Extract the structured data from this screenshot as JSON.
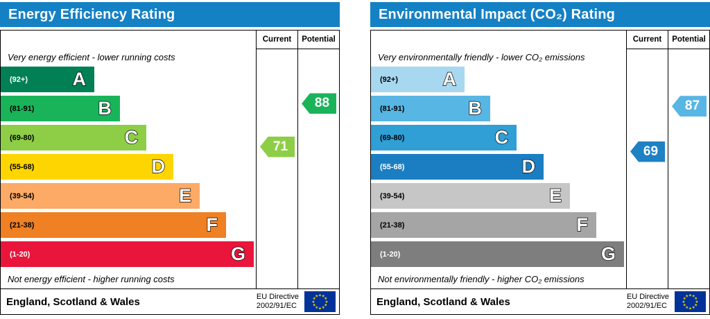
{
  "colors": {
    "header_bg": "#1581c5",
    "header_text": "#ffffff",
    "eu_flag_bg": "#003399",
    "eu_star": "#ffcc00"
  },
  "chart_data": [
    {
      "type": "bar",
      "title": "Energy Efficiency Rating",
      "columns": {
        "current": "Current",
        "potential": "Potential"
      },
      "top_note": "Very energy efficient - lower running costs",
      "bottom_note": "Not energy efficient - higher running costs",
      "categories": [
        "A",
        "B",
        "C",
        "D",
        "E",
        "F",
        "G"
      ],
      "bands": [
        {
          "letter": "A",
          "range_label": "(92+)",
          "min": 92,
          "max": 100,
          "color": "#008054",
          "label_color": "#ffffff",
          "width_pct": 36.7
        },
        {
          "letter": "B",
          "range_label": "(81-91)",
          "min": 81,
          "max": 91,
          "color": "#19b459",
          "label_color": "#000000",
          "width_pct": 46.7
        },
        {
          "letter": "C",
          "range_label": "(69-80)",
          "min": 69,
          "max": 80,
          "color": "#8dce46",
          "label_color": "#000000",
          "width_pct": 57.1
        },
        {
          "letter": "D",
          "range_label": "(55-68)",
          "min": 55,
          "max": 68,
          "color": "#ffd500",
          "label_color": "#000000",
          "width_pct": 67.7
        },
        {
          "letter": "E",
          "range_label": "(39-54)",
          "min": 39,
          "max": 54,
          "color": "#fcaa65",
          "label_color": "#000000",
          "width_pct": 78.0
        },
        {
          "letter": "F",
          "range_label": "(21-38)",
          "min": 21,
          "max": 38,
          "color": "#ef8023",
          "label_color": "#000000",
          "width_pct": 88.3
        },
        {
          "letter": "G",
          "range_label": "(1-20)",
          "min": 1,
          "max": 20,
          "color": "#e9153b",
          "label_color": "#ffffff",
          "width_pct": 99.2
        }
      ],
      "current": 71,
      "potential": 88,
      "current_band": "C",
      "potential_band": "B",
      "current_color": "#8dce46",
      "potential_color": "#19b459",
      "footer": {
        "region": "England, Scotland & Wales",
        "directive_line1": "EU Directive",
        "directive_line2": "2002/91/EC"
      }
    },
    {
      "type": "bar",
      "title": "Environmental Impact (CO₂) Rating",
      "columns": {
        "current": "Current",
        "potential": "Potential"
      },
      "top_note": "Very environmentally friendly - lower CO₂ emissions",
      "bottom_note": "Not environmentally friendly - higher CO₂ emissions",
      "categories": [
        "A",
        "B",
        "C",
        "D",
        "E",
        "F",
        "G"
      ],
      "bands": [
        {
          "letter": "A",
          "range_label": "(92+)",
          "min": 92,
          "max": 100,
          "color": "#a8d8f0",
          "label_color": "#000000",
          "width_pct": 36.7
        },
        {
          "letter": "B",
          "range_label": "(81-91)",
          "min": 81,
          "max": 91,
          "color": "#58b6e4",
          "label_color": "#000000",
          "width_pct": 46.7
        },
        {
          "letter": "C",
          "range_label": "(69-80)",
          "min": 69,
          "max": 80,
          "color": "#2f9fd6",
          "label_color": "#000000",
          "width_pct": 57.1
        },
        {
          "letter": "D",
          "range_label": "(55-68)",
          "min": 55,
          "max": 68,
          "color": "#1b7ec2",
          "label_color": "#ffffff",
          "width_pct": 67.7
        },
        {
          "letter": "E",
          "range_label": "(39-54)",
          "min": 39,
          "max": 54,
          "color": "#c6c6c6",
          "label_color": "#000000",
          "width_pct": 78.0
        },
        {
          "letter": "F",
          "range_label": "(21-38)",
          "min": 21,
          "max": 38,
          "color": "#a5a5a5",
          "label_color": "#000000",
          "width_pct": 88.3
        },
        {
          "letter": "G",
          "range_label": "(1-20)",
          "min": 1,
          "max": 20,
          "color": "#7e7e7e",
          "label_color": "#ffffff",
          "width_pct": 99.2
        }
      ],
      "current": 69,
      "potential": 87,
      "current_band": "C",
      "potential_band": "B",
      "current_color": "#1d81c4",
      "potential_color": "#58b6e4",
      "footer": {
        "region": "England, Scotland & Wales",
        "directive_line1": "EU Directive",
        "directive_line2": "2002/91/EC"
      }
    }
  ]
}
